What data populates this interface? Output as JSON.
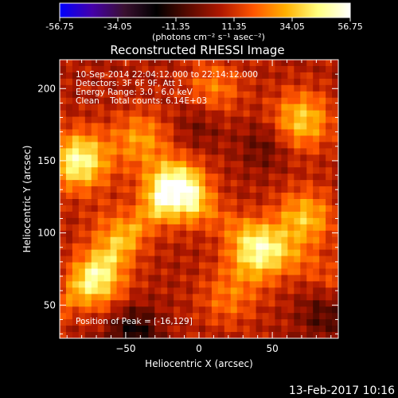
{
  "colorbar": {
    "tick_labels": [
      "-56.75",
      "-34.05",
      "-11.35",
      "11.35",
      "34.05",
      "56.75"
    ],
    "unit_label": "(photons cm⁻² s⁻¹ asec⁻²)",
    "range": [
      -56.75,
      56.75
    ],
    "colors": [
      "#0000ff",
      "#4400aa",
      "#3a1030",
      "#000000",
      "#5a0a00",
      "#b01800",
      "#ff5500",
      "#ffb000",
      "#ffff80",
      "#ffffff"
    ]
  },
  "chart_data": {
    "type": "heatmap",
    "title": "Reconstructed RHESSI Image",
    "xlabel": "Heliocentric X (arcsec)",
    "ylabel": "Heliocentric Y (arcsec)",
    "xlim": [
      -95,
      95
    ],
    "ylim": [
      27,
      220
    ],
    "xticks": [
      -50,
      0,
      50
    ],
    "yticks": [
      50,
      100,
      150,
      200
    ],
    "xtick_labels": [
      "−50",
      "0",
      "50"
    ],
    "ytick_labels": [
      "50",
      "100",
      "150",
      "200"
    ],
    "info_lines": [
      "10-Sep-2014 22:04:12.000 to 22:14:12.000",
      "Detectors: 3F 6F 9F, Att 1",
      "Energy Range: 3.0 - 6.0 keV",
      "Clean    Total counts: 6.14E+03"
    ],
    "peak_label": "Position of Peak = [-16,129]",
    "peak_position": [
      -16,
      129
    ],
    "sources": [
      {
        "x": -16,
        "y": 129,
        "peak": 56
      },
      {
        "x": -82,
        "y": 150,
        "peak": 42
      },
      {
        "x": -70,
        "y": 67,
        "peak": 34
      },
      {
        "x": 40,
        "y": 86,
        "peak": 36
      },
      {
        "x": 72,
        "y": 110,
        "peak": 28
      },
      {
        "x": 70,
        "y": 178,
        "peak": 30
      },
      {
        "x": -40,
        "y": 165,
        "peak": 22
      },
      {
        "x": -55,
        "y": 98,
        "peak": 20
      },
      {
        "x": 10,
        "y": 200,
        "peak": 18
      },
      {
        "x": 20,
        "y": 55,
        "peak": 16
      }
    ],
    "negative_regions": [
      {
        "x": -45,
        "y": 32,
        "depth": -24
      },
      {
        "x": 85,
        "y": 42,
        "depth": -14
      },
      {
        "x": 45,
        "y": 160,
        "depth": -12
      },
      {
        "x": 0,
        "y": 175,
        "depth": -10
      }
    ]
  },
  "footer": {
    "timestamp": "13-Feb-2017 10:16"
  }
}
